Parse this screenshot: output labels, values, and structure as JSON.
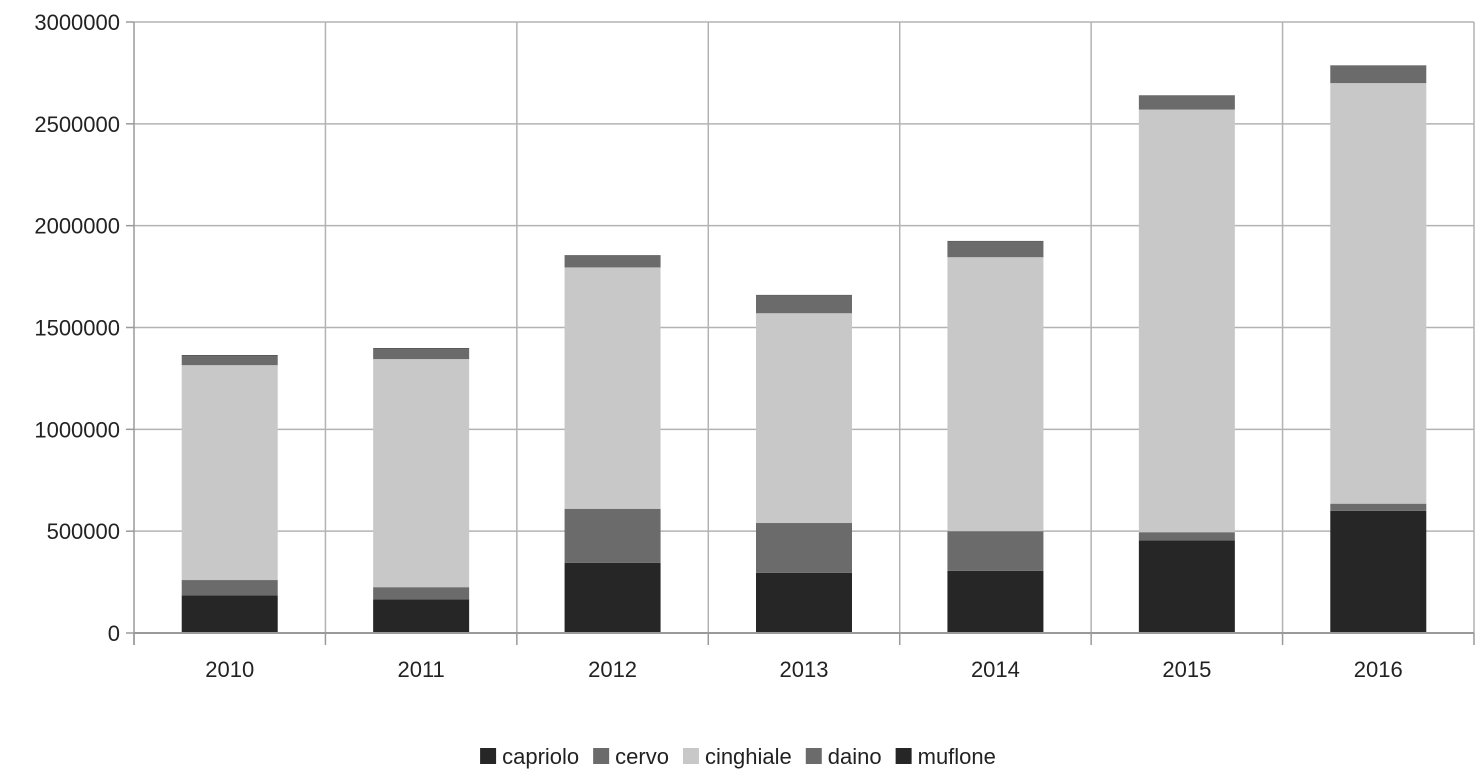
{
  "chart_data": {
    "type": "bar",
    "stacked": true,
    "categories": [
      "2010",
      "2011",
      "2012",
      "2013",
      "2014",
      "2015",
      "2016"
    ],
    "series": [
      {
        "name": "capriolo",
        "color": "#262626",
        "values": [
          185000,
          165000,
          345000,
          295000,
          305000,
          455000,
          600000
        ]
      },
      {
        "name": "cervo",
        "color": "#6b6b6b",
        "values": [
          75000,
          60000,
          265000,
          245000,
          195000,
          40000,
          35000
        ]
      },
      {
        "name": "cinghiale",
        "color": "#c8c8c8",
        "values": [
          1055000,
          1120000,
          1185000,
          1030000,
          1345000,
          2075000,
          2065000
        ]
      },
      {
        "name": "daino",
        "color": "#6b6b6b",
        "values": [
          48000,
          52000,
          58000,
          88000,
          78000,
          68000,
          85000
        ]
      },
      {
        "name": "muflone",
        "color": "#262626",
        "values": [
          2000,
          2000,
          2000,
          2000,
          2000,
          2000,
          2000
        ]
      }
    ],
    "title": "",
    "xlabel": "",
    "ylabel": "",
    "ylim": [
      0,
      3000000
    ],
    "yticks": [
      "0",
      "500000",
      "1000000",
      "1500000",
      "2000000",
      "2500000",
      "3000000"
    ],
    "grid": true,
    "legend_position": "bottom"
  }
}
